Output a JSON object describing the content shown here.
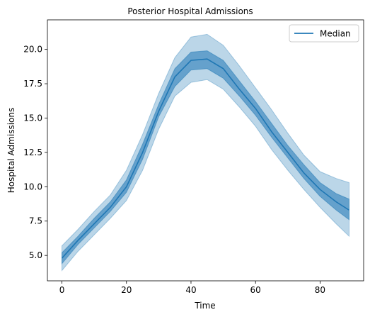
{
  "chart_data": {
    "type": "area",
    "title": "Posterior Hospital Admissions",
    "xlabel": "Time",
    "ylabel": "Hospital Admissions",
    "xlim": [
      -4.5,
      93.5
    ],
    "ylim": [
      3.15,
      22.15
    ],
    "xticks": [
      0,
      20,
      40,
      60,
      80
    ],
    "xtick_labels": [
      "0",
      "20",
      "40",
      "60",
      "80"
    ],
    "yticks": [
      5.0,
      7.5,
      10.0,
      12.5,
      15.0,
      17.5,
      20.0
    ],
    "ytick_labels": [
      "5.0",
      "7.5",
      "10.0",
      "12.5",
      "15.0",
      "17.5",
      "20.0"
    ],
    "grid": false,
    "legend": {
      "position": "top-right",
      "entries": [
        "Median"
      ]
    },
    "colors": {
      "line": "#1f77b4",
      "inner_band": "#1f77b4",
      "outer_band": "#1f77b4"
    },
    "x": [
      0,
      5,
      10,
      15,
      20,
      25,
      30,
      35,
      40,
      45,
      50,
      55,
      60,
      65,
      70,
      75,
      80,
      85,
      89
    ],
    "series": [
      {
        "name": "Median",
        "role": "median",
        "values": [
          4.8,
          6.1,
          7.3,
          8.5,
          10.0,
          12.5,
          15.5,
          18.0,
          19.2,
          19.3,
          18.6,
          17.1,
          15.7,
          14.0,
          12.5,
          11.0,
          9.8,
          8.9,
          8.3
        ]
      },
      {
        "role": "inner-lower",
        "values": [
          4.4,
          5.8,
          7.0,
          8.2,
          9.6,
          12.0,
          15.1,
          17.3,
          18.5,
          18.6,
          17.9,
          16.6,
          15.2,
          13.6,
          12.1,
          10.6,
          9.3,
          8.3,
          7.6
        ]
      },
      {
        "role": "inner-upper",
        "values": [
          5.2,
          6.4,
          7.7,
          8.9,
          10.5,
          13.1,
          16.0,
          18.6,
          19.8,
          19.9,
          19.2,
          17.7,
          16.2,
          14.6,
          13.0,
          11.6,
          10.3,
          9.5,
          9.1
        ]
      },
      {
        "role": "outer-lower",
        "values": [
          3.9,
          5.3,
          6.5,
          7.7,
          9.0,
          11.2,
          14.2,
          16.6,
          17.6,
          17.8,
          17.1,
          15.8,
          14.4,
          12.7,
          11.2,
          9.8,
          8.5,
          7.3,
          6.4
        ]
      },
      {
        "role": "outer-upper",
        "values": [
          5.7,
          6.9,
          8.2,
          9.4,
          11.2,
          13.8,
          16.8,
          19.4,
          20.9,
          21.1,
          20.3,
          18.8,
          17.2,
          15.6,
          13.9,
          12.3,
          11.1,
          10.6,
          10.3
        ]
      }
    ]
  }
}
